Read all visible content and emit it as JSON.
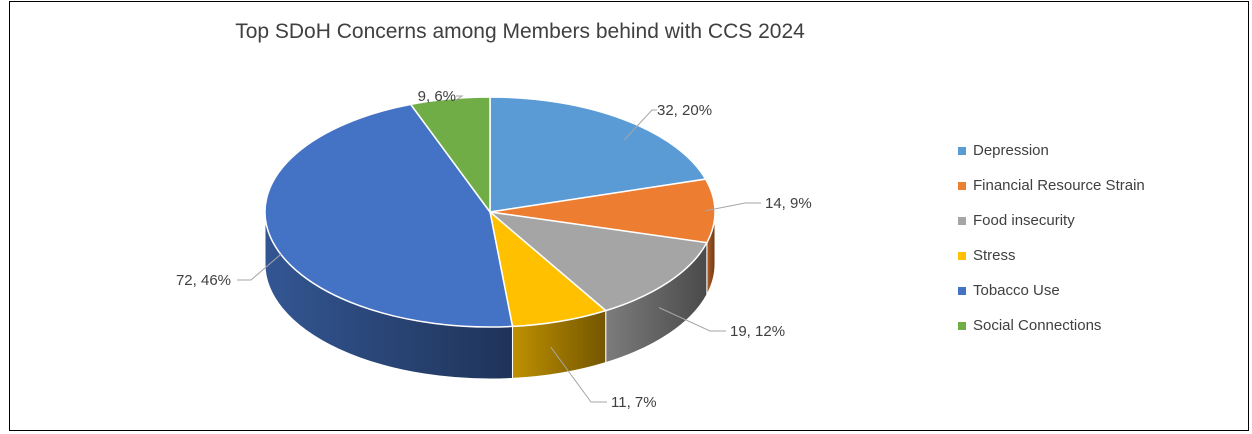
{
  "chart_data": {
    "type": "pie",
    "title": "Top SDoH Concerns among Members behind with CCS 2024",
    "legend_position": "right",
    "categories": [
      "Depression",
      "Financial Resource Strain",
      "Food insecurity",
      "Stress",
      "Tobacco Use",
      "Social Connections"
    ],
    "values": [
      32,
      14,
      19,
      11,
      72,
      9
    ],
    "percent_labels": [
      "20%",
      "9%",
      "12%",
      "7%",
      "46%",
      "6%"
    ],
    "data_labels": [
      "32, 20%",
      "14, 9%",
      "19, 12%",
      "11, 7%",
      "72, 46%",
      "9, 6%"
    ],
    "colors": [
      "#5B9BD5",
      "#ED7D31",
      "#A5A5A5",
      "#FFC000",
      "#4472C4",
      "#70AD47"
    ]
  }
}
